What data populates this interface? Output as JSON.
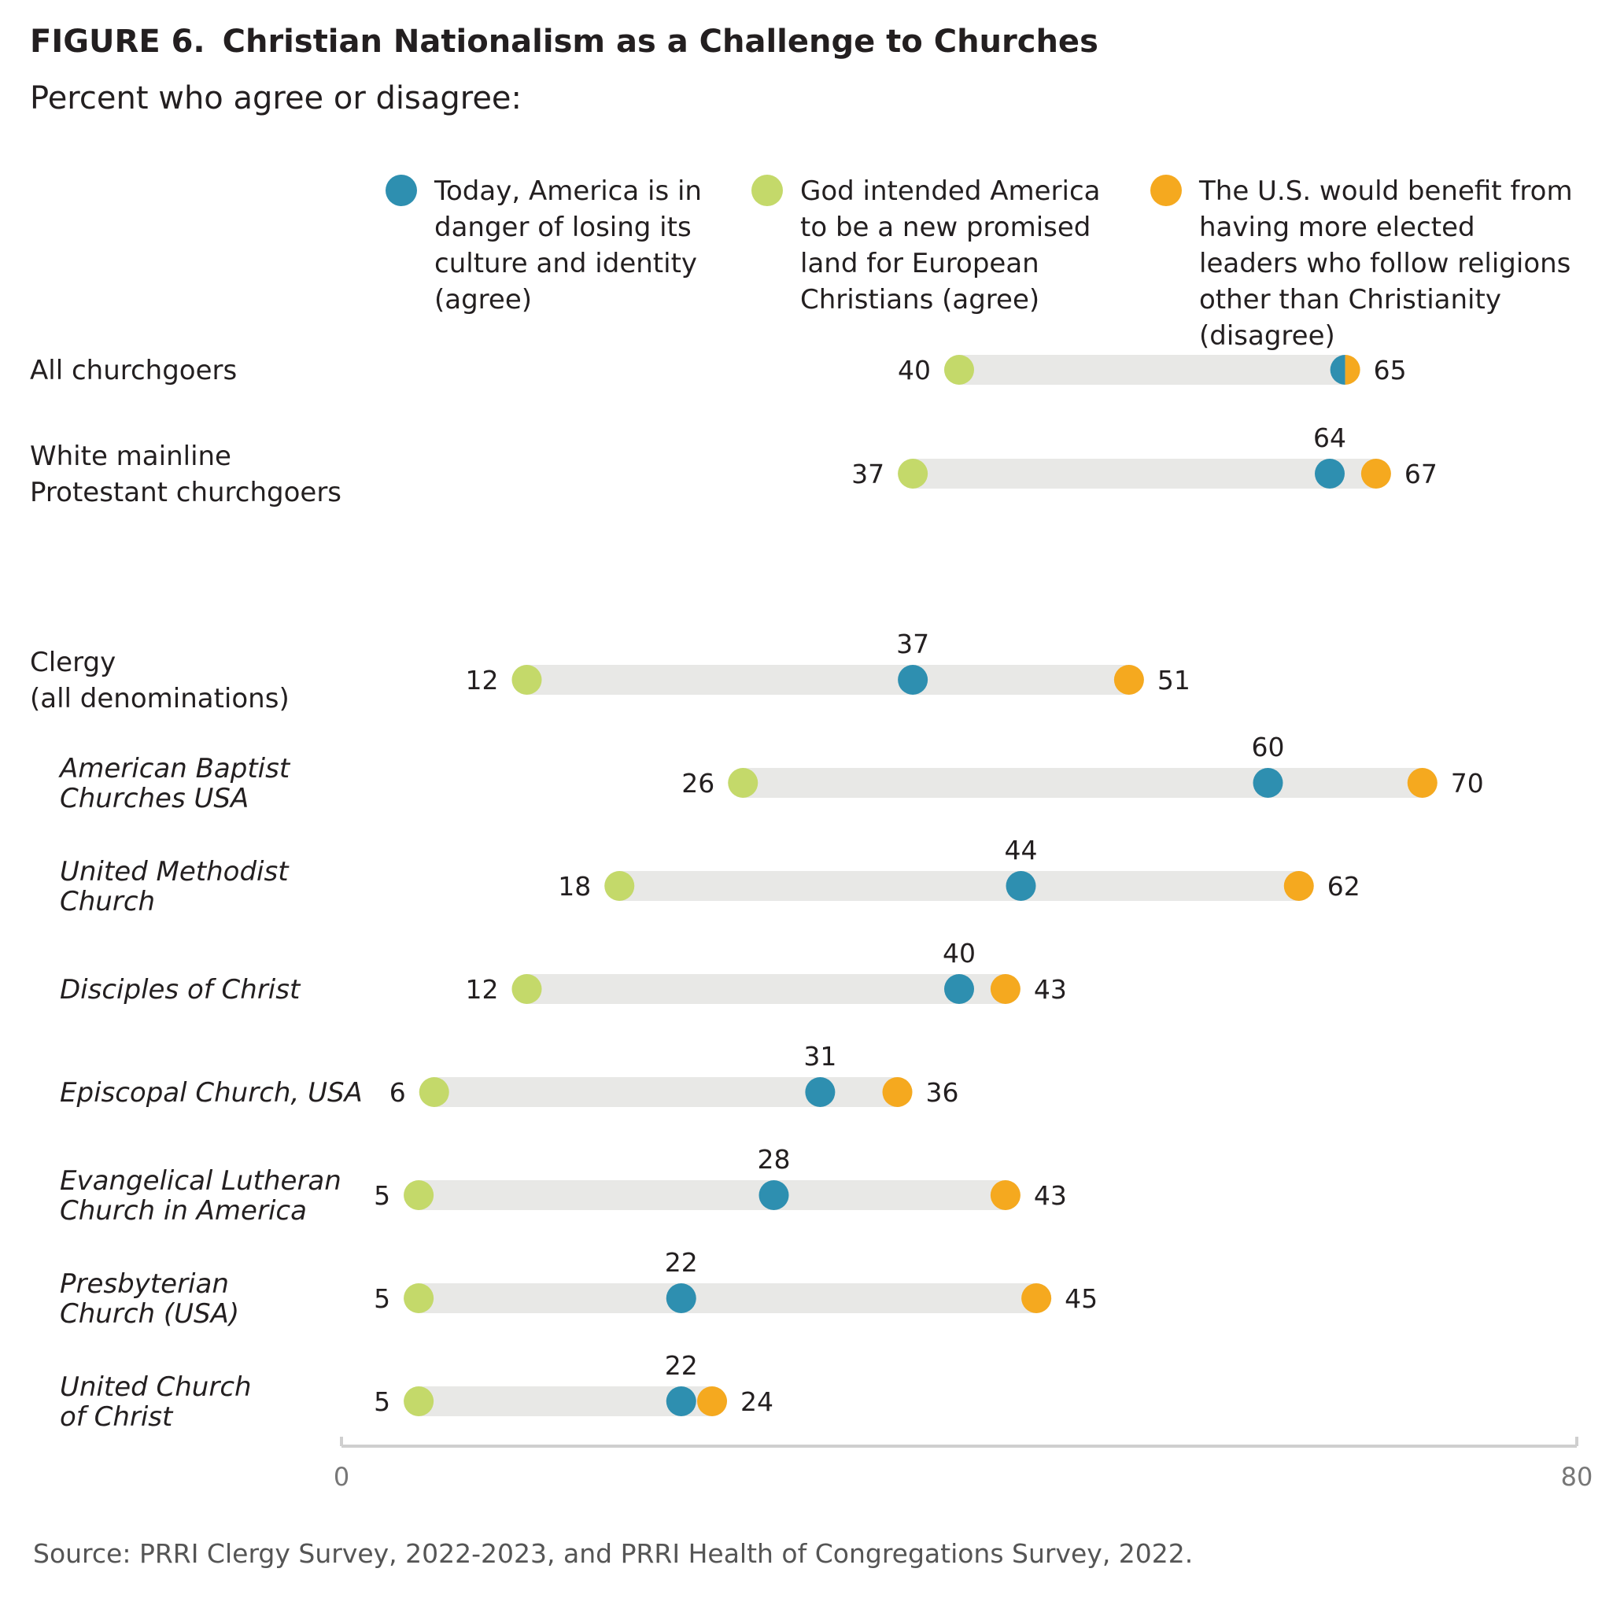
{
  "header": {
    "figure_label": "FIGURE 6.",
    "title": "Christian Nationalism as a Challenge to Churches",
    "subtitle": "Percent who agree or disagree:"
  },
  "legend": [
    {
      "key": "danger",
      "text": "Today, America is in danger of losing its culture and identity (agree)",
      "color": "#2e8fb0"
    },
    {
      "key": "promised",
      "text": "God intended America to be a new promised land for European Christians (agree)",
      "color": "#c4d96a"
    },
    {
      "key": "benefit",
      "text": "The U.S. would benefit from having more elected leaders who follow religions other than Christianity (disagree)",
      "color": "#f5a91f"
    }
  ],
  "source": "Source: PRRI Clergy Survey, 2022-2023, and PRRI Health of Congregations Survey, 2022.",
  "chart_data": {
    "type": "dot",
    "xlim": [
      0,
      80
    ],
    "x_ticks": [
      0,
      80
    ],
    "grid": false,
    "legend_position": "top",
    "series": [
      {
        "key": "danger",
        "color": "#2e8fb0"
      },
      {
        "key": "promised",
        "color": "#c4d96a"
      },
      {
        "key": "benefit",
        "color": "#f5a91f"
      }
    ],
    "rows": [
      {
        "label": [
          "All churchgoers"
        ],
        "italic": false,
        "danger": 65,
        "promised": 40,
        "benefit": 65,
        "labels": {
          "danger": "",
          "promised": "40",
          "benefit": "65"
        }
      },
      {
        "label": [
          "White mainline",
          "Protestant churchgoers"
        ],
        "italic": false,
        "danger": 64,
        "promised": 37,
        "benefit": 67,
        "labels": {
          "danger": "64",
          "promised": "37",
          "benefit": "67"
        }
      },
      {
        "label": [
          "Clergy",
          "(all denominations)"
        ],
        "italic": false,
        "danger": 37,
        "promised": 12,
        "benefit": 51,
        "labels": {
          "danger": "37",
          "promised": "12",
          "benefit": "51"
        }
      },
      {
        "label": [
          "American Baptist",
          "Churches USA"
        ],
        "italic": true,
        "danger": 60,
        "promised": 26,
        "benefit": 70,
        "labels": {
          "danger": "60",
          "promised": "26",
          "benefit": "70"
        }
      },
      {
        "label": [
          "United Methodist",
          "Church"
        ],
        "italic": true,
        "danger": 44,
        "promised": 18,
        "benefit": 62,
        "labels": {
          "danger": "44",
          "promised": "18",
          "benefit": "62"
        }
      },
      {
        "label": [
          "Disciples of Christ"
        ],
        "italic": true,
        "danger": 40,
        "promised": 12,
        "benefit": 43,
        "labels": {
          "danger": "40",
          "promised": "12",
          "benefit": "43"
        }
      },
      {
        "label": [
          "Episcopal Church, USA"
        ],
        "italic": true,
        "danger": 31,
        "promised": 6,
        "benefit": 36,
        "labels": {
          "danger": "31",
          "promised": "6",
          "benefit": "36"
        }
      },
      {
        "label": [
          "Evangelical Lutheran",
          "Church in America"
        ],
        "italic": true,
        "danger": 28,
        "promised": 5,
        "benefit": 43,
        "labels": {
          "danger": "28",
          "promised": "5",
          "benefit": "43"
        }
      },
      {
        "label": [
          "Presbyterian",
          "Church (USA)"
        ],
        "italic": true,
        "danger": 22,
        "promised": 5,
        "benefit": 45,
        "labels": {
          "danger": "22",
          "promised": "5",
          "benefit": "45"
        }
      },
      {
        "label": [
          "United Church",
          "of Christ"
        ],
        "italic": true,
        "danger": 22,
        "promised": 5,
        "benefit": 24,
        "labels": {
          "danger": "22",
          "promised": "5",
          "benefit": "24"
        }
      }
    ]
  }
}
